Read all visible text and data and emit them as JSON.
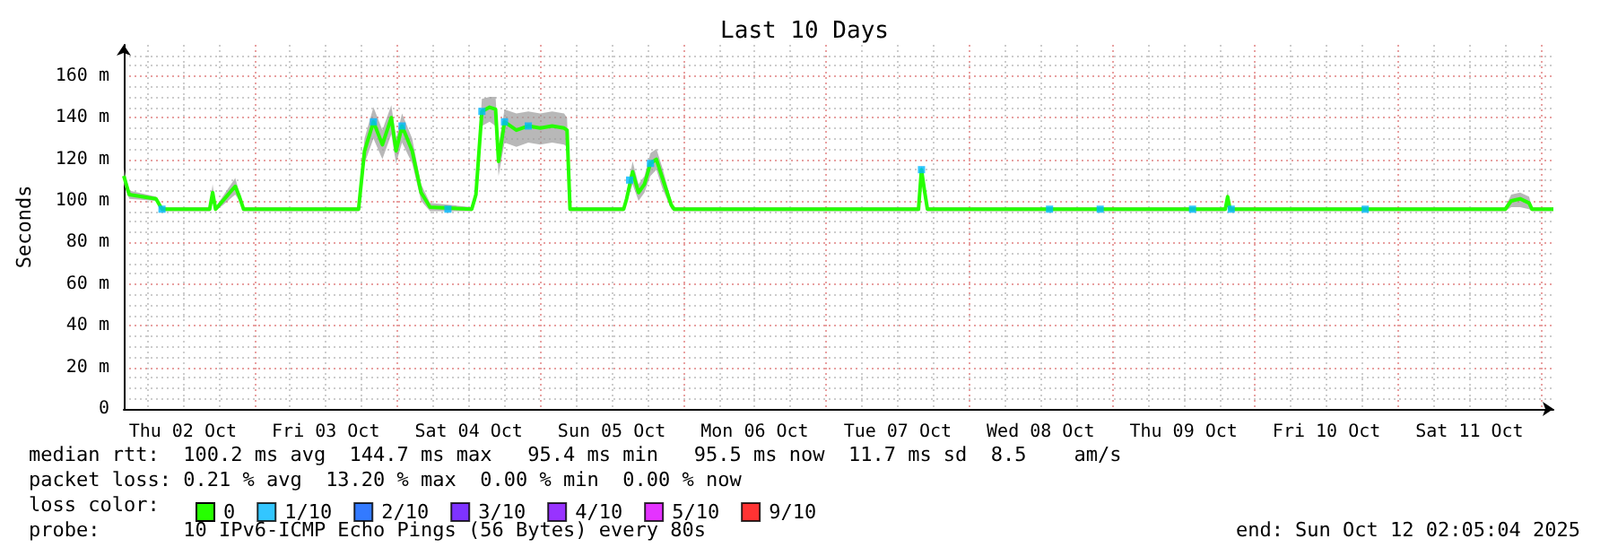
{
  "chart_data": {
    "type": "line",
    "title": "Last 10 Days",
    "ylabel": "Seconds",
    "xlim": [
      "2025-10-02T02:05",
      "2025-10-12T02:05"
    ],
    "xticks": [
      {
        "value": "2025-10-02T12:00",
        "label": "Thu 02 Oct"
      },
      {
        "value": "2025-10-03T12:00",
        "label": "Fri 03 Oct"
      },
      {
        "value": "2025-10-04T12:00",
        "label": "Sat 04 Oct"
      },
      {
        "value": "2025-10-05T12:00",
        "label": "Sun 05 Oct"
      },
      {
        "value": "2025-10-06T12:00",
        "label": "Mon 06 Oct"
      },
      {
        "value": "2025-10-07T12:00",
        "label": "Tue 07 Oct"
      },
      {
        "value": "2025-10-08T12:00",
        "label": "Wed 08 Oct"
      },
      {
        "value": "2025-10-09T12:00",
        "label": "Thu 09 Oct"
      },
      {
        "value": "2025-10-10T12:00",
        "label": "Fri 10 Oct"
      },
      {
        "value": "2025-10-11T12:00",
        "label": "Sat 11 Oct"
      }
    ],
    "ylim": [
      0,
      175
    ],
    "yticks": [
      0,
      {
        "value": 20,
        "label": "20 m"
      },
      {
        "value": 40,
        "label": "40 m"
      },
      {
        "value": 60,
        "label": "60 m"
      },
      {
        "value": 80,
        "label": "80 m"
      },
      {
        "value": 100,
        "label": "100 m"
      },
      {
        "value": 120,
        "label": "120 m"
      },
      {
        "value": 140,
        "label": "140 m"
      },
      {
        "value": 160,
        "label": "160 m"
      }
    ],
    "grid": true,
    "legend": "bottom left",
    "legend_title": "loss color:",
    "marker": "none",
    "series": [
      {
        "name": "0",
        "color": "#26ff00",
        "x": [
          "2025-10-02T02:05",
          "2025-10-02T03:00",
          "2025-10-02T07:30",
          "2025-10-02T08:30",
          "2025-10-02T16:30",
          "2025-10-02T17:00",
          "2025-10-02T17:30",
          "2025-10-02T20:48",
          "2025-10-02T21:30",
          "2025-10-02T22:12",
          "2025-10-03T17:30",
          "2025-10-03T18:30",
          "2025-10-03T20:00",
          "2025-10-03T21:30",
          "2025-10-03T23:00",
          "2025-10-03T23:48",
          "2025-10-04T00:48",
          "2025-10-04T02:30",
          "2025-10-04T04:00",
          "2025-10-04T05:30",
          "2025-10-04T12:30",
          "2025-10-04T13:12",
          "2025-10-04T14:12",
          "2025-10-04T15:30",
          "2025-10-04T16:30",
          "2025-10-04T17:00",
          "2025-10-04T18:00",
          "2025-10-04T20:00",
          "2025-10-04T22:00",
          "2025-10-05T00:00",
          "2025-10-05T02:00",
          "2025-10-05T04:00",
          "2025-10-05T04:30",
          "2025-10-05T05:00",
          "2025-10-05T14:00",
          "2025-10-05T14:30",
          "2025-10-05T15:30",
          "2025-10-05T16:30",
          "2025-10-05T17:30",
          "2025-10-05T18:30",
          "2025-10-05T19:30",
          "2025-10-05T20:30",
          "2025-10-05T22:00",
          "2025-10-05T22:30",
          "2025-10-07T15:30",
          "2025-10-07T16:00",
          "2025-10-07T16:30",
          "2025-10-07T17:00",
          "2025-10-09T19:00",
          "2025-10-09T19:24",
          "2025-10-09T19:48",
          "2025-10-11T18:00",
          "2025-10-11T19:00",
          "2025-10-11T20:30",
          "2025-10-11T22:00",
          "2025-10-11T22:30",
          "2025-10-12T02:05"
        ],
        "values": [
          112,
          103,
          101,
          96,
          96,
          104,
          96,
          107,
          102,
          96,
          96,
          124,
          138,
          127,
          140,
          124,
          136,
          124,
          104,
          97,
          96,
          103,
          143,
          145,
          144,
          119,
          138,
          134,
          136,
          135,
          136,
          135,
          134,
          96,
          96,
          101,
          114,
          104,
          108,
          118,
          120,
          111,
          98,
          96,
          96,
          115,
          105,
          96,
          96,
          102,
          96,
          96,
          100,
          101,
          99,
          96,
          96
        ],
        "lower": [
          108,
          101,
          100,
          95,
          95,
          100,
          95,
          103,
          100,
          95,
          95,
          118,
          130,
          120,
          132,
          118,
          128,
          118,
          100,
          95,
          95,
          100,
          136,
          138,
          136,
          112,
          128,
          126,
          128,
          127,
          128,
          127,
          126,
          95,
          95,
          99,
          108,
          100,
          104,
          112,
          115,
          106,
          96,
          95,
          95,
          112,
          102,
          95,
          95,
          99,
          95,
          95,
          97,
          97,
          96,
          95,
          95
        ],
        "upper": [
          116,
          105,
          102,
          97,
          97,
          108,
          97,
          111,
          104,
          97,
          97,
          130,
          145,
          134,
          146,
          130,
          142,
          130,
          108,
          99,
          97,
          106,
          149,
          150,
          150,
          126,
          144,
          142,
          143,
          142,
          143,
          142,
          140,
          97,
          97,
          103,
          119,
          108,
          112,
          123,
          125,
          116,
          100,
          97,
          97,
          117,
          108,
          97,
          97,
          105,
          97,
          97,
          103,
          104,
          102,
          97,
          97
        ]
      },
      {
        "name": "1/10",
        "color": "#00b8ff",
        "type": "scatter",
        "marker": "square",
        "x": [
          "2025-10-02T08:30",
          "2025-10-03T20:00",
          "2025-10-04T00:48",
          "2025-10-04T08:30",
          "2025-10-04T14:12",
          "2025-10-04T18:00",
          "2025-10-04T22:00",
          "2025-10-05T15:00",
          "2025-10-05T18:30",
          "2025-10-07T16:00",
          "2025-10-08T13:30",
          "2025-10-08T22:00",
          "2025-10-09T13:30",
          "2025-10-09T20:00",
          "2025-10-10T18:30"
        ],
        "values": [
          96,
          138,
          136,
          96,
          143,
          138,
          136,
          110,
          118,
          115,
          96,
          96,
          96,
          96,
          96
        ]
      },
      {
        "name": "2/10",
        "color": "#0059ff",
        "type": "scatter",
        "marker": "square"
      },
      {
        "name": "3/10",
        "color": "#5e00ff",
        "type": "scatter",
        "marker": "square"
      },
      {
        "name": "4/10",
        "color": "#7e00ff",
        "type": "scatter",
        "marker": "square"
      },
      {
        "name": "5/10",
        "color": "#dd00ff",
        "type": "scatter",
        "marker": "square"
      },
      {
        "name": "9/10",
        "color": "#ff0000",
        "type": "scatter",
        "marker": "square"
      }
    ],
    "annotations": [
      "median rtt:  100.2 ms avg  144.7 ms max   95.4 ms min   95.5 ms now  11.7 ms sd  8.5    am/s",
      "packet loss: 0.21 % avg  13.20 % max  0.00 % min  0.00 % now",
      "probe:       10 IPv6-ICMP Echo Pings (56 Bytes) every 80s",
      "end: Sun Oct 12 02:05:04 2025"
    ]
  }
}
